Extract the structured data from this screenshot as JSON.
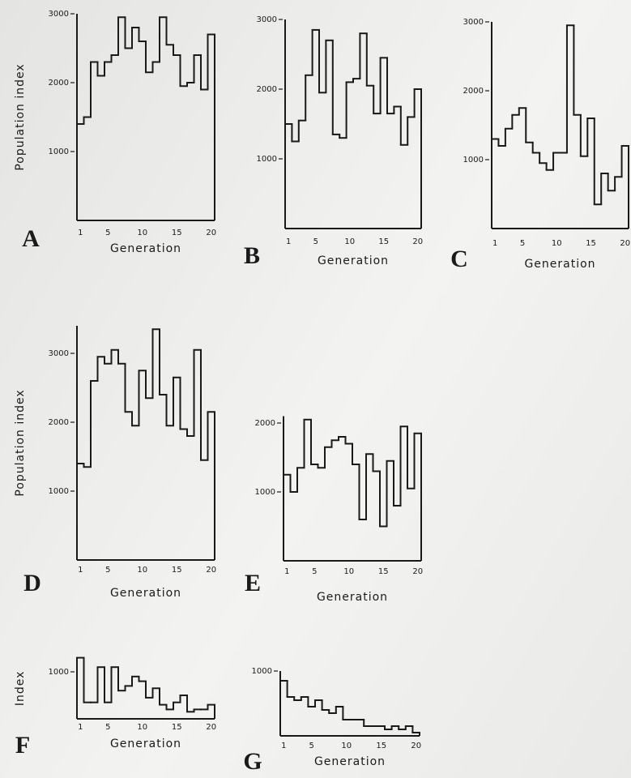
{
  "chart_data": [
    {
      "type": "step",
      "label": "A",
      "ylabel": "Population index",
      "xlabel": "Generation",
      "x": [
        1,
        2,
        3,
        4,
        5,
        6,
        7,
        8,
        9,
        10,
        11,
        12,
        13,
        14,
        15,
        16,
        17,
        18,
        19,
        20
      ],
      "values": [
        1400,
        1500,
        2300,
        2100,
        2300,
        2400,
        2950,
        2500,
        2800,
        2600,
        2150,
        2300,
        2950,
        2550,
        2400,
        1950,
        2000,
        2400,
        1900,
        2700
      ],
      "xlim": [
        0.5,
        20.5
      ],
      "xticks": [
        1,
        5,
        10,
        15,
        20
      ],
      "ylim": [
        0,
        3000
      ],
      "yticks": [
        1000,
        2000,
        3000
      ],
      "color": "#1a1a1a"
    },
    {
      "type": "step",
      "label": "B",
      "xlabel": "Generation",
      "x": [
        1,
        2,
        3,
        4,
        5,
        6,
        7,
        8,
        9,
        10,
        11,
        12,
        13,
        14,
        15,
        16,
        17,
        18,
        19,
        20
      ],
      "values": [
        1500,
        1250,
        1550,
        2200,
        2850,
        1950,
        2700,
        1350,
        1300,
        2100,
        2150,
        2800,
        2050,
        1650,
        2450,
        1650,
        1750,
        1200,
        1600,
        2000
      ],
      "xlim": [
        0.5,
        20.5
      ],
      "xticks": [
        1,
        5,
        10,
        15,
        20
      ],
      "ylim": [
        0,
        3000
      ],
      "yticks": [
        1000,
        2000,
        3000
      ],
      "color": "#1a1a1a"
    },
    {
      "type": "step",
      "label": "C",
      "xlabel": "Generation",
      "x": [
        1,
        2,
        3,
        4,
        5,
        6,
        7,
        8,
        9,
        10,
        11,
        12,
        13,
        14,
        15,
        16,
        17,
        18,
        19,
        20
      ],
      "values": [
        1300,
        1200,
        1450,
        1650,
        1750,
        1250,
        1100,
        950,
        850,
        1100,
        1100,
        2950,
        1650,
        1050,
        1600,
        350,
        800,
        550,
        750,
        1200
      ],
      "xlim": [
        0.5,
        20.5
      ],
      "xticks": [
        1,
        5,
        10,
        15,
        20
      ],
      "ylim": [
        0,
        3000
      ],
      "yticks": [
        1000,
        2000,
        3000
      ],
      "color": "#1a1a1a"
    },
    {
      "type": "step",
      "label": "D",
      "ylabel": "Population index",
      "xlabel": "Generation",
      "x": [
        1,
        2,
        3,
        4,
        5,
        6,
        7,
        8,
        9,
        10,
        11,
        12,
        13,
        14,
        15,
        16,
        17,
        18,
        19,
        20
      ],
      "values": [
        1400,
        1350,
        2600,
        2950,
        2850,
        3050,
        2850,
        2150,
        1950,
        2750,
        2350,
        3350,
        2400,
        1950,
        2650,
        1900,
        1800,
        3050,
        1450,
        2150
      ],
      "xlim": [
        0.5,
        20.5
      ],
      "xticks": [
        1,
        5,
        10,
        15,
        20
      ],
      "ylim": [
        0,
        3400
      ],
      "yticks": [
        1000,
        2000,
        3000
      ],
      "color": "#1a1a1a"
    },
    {
      "type": "step",
      "label": "E",
      "xlabel": "Generation",
      "x": [
        1,
        2,
        3,
        4,
        5,
        6,
        7,
        8,
        9,
        10,
        11,
        12,
        13,
        14,
        15,
        16,
        17,
        18,
        19,
        20
      ],
      "values": [
        1250,
        1000,
        1350,
        2050,
        1400,
        1350,
        1650,
        1750,
        1800,
        1700,
        1400,
        600,
        1550,
        1300,
        500,
        1450,
        800,
        1950,
        1050,
        1850
      ],
      "xlim": [
        0.5,
        20.5
      ],
      "xticks": [
        1,
        5,
        10,
        15,
        20
      ],
      "ylim": [
        0,
        2100
      ],
      "yticks": [
        1000,
        2000
      ],
      "color": "#1a1a1a"
    },
    {
      "type": "step",
      "label": "F",
      "ylabel": "Index",
      "xlabel": "Generation",
      "x": [
        1,
        2,
        3,
        4,
        5,
        6,
        7,
        8,
        9,
        10,
        11,
        12,
        13,
        14,
        15,
        16,
        17,
        18,
        19,
        20
      ],
      "values": [
        1300,
        350,
        350,
        1100,
        350,
        1100,
        600,
        700,
        900,
        800,
        450,
        650,
        300,
        200,
        350,
        500,
        150,
        200,
        200,
        300
      ],
      "xlim": [
        0.5,
        20.5
      ],
      "xticks": [
        1,
        5,
        10,
        15,
        20
      ],
      "ylim": [
        0,
        1300
      ],
      "yticks": [
        1000
      ],
      "color": "#1a1a1a"
    },
    {
      "type": "step",
      "label": "G",
      "xlabel": "Generation",
      "x": [
        1,
        2,
        3,
        4,
        5,
        6,
        7,
        8,
        9,
        10,
        11,
        12,
        13,
        14,
        15,
        16,
        17,
        18,
        19,
        20
      ],
      "values": [
        850,
        600,
        550,
        600,
        450,
        550,
        400,
        350,
        450,
        250,
        250,
        250,
        150,
        150,
        150,
        100,
        150,
        100,
        150,
        50
      ],
      "xlim": [
        0.5,
        20.5
      ],
      "xticks": [
        1,
        5,
        10,
        15,
        20
      ],
      "ylim": [
        0,
        1000
      ],
      "yticks": [
        1000
      ],
      "color": "#1a1a1a"
    }
  ]
}
